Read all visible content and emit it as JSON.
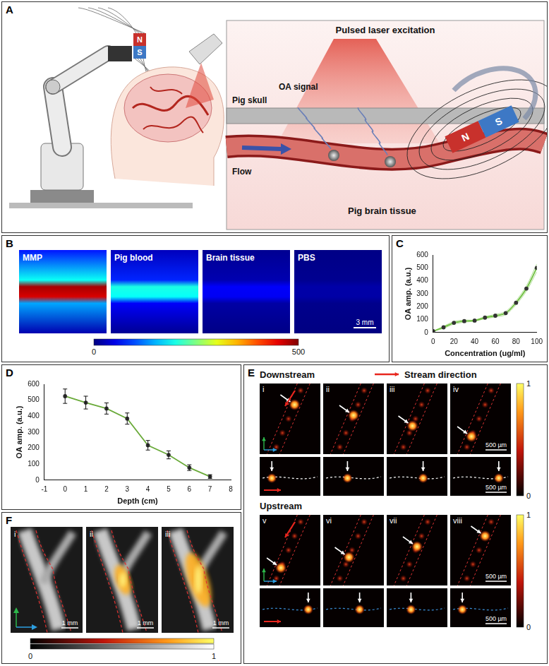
{
  "panels": {
    "A": {
      "label": "A",
      "laser": "Pulsed laser excitation",
      "skull": "Pig skull",
      "signal": "OA signal",
      "flow": "Flow",
      "tissue": "Pig brain tissue",
      "north": "N",
      "south": "S"
    },
    "B": {
      "label": "B",
      "images": [
        "MMP",
        "Pig blood",
        "Brain tissue",
        "PBS"
      ],
      "peak_values": [
        480,
        200,
        60,
        20
      ],
      "scale_bar": "3 mm",
      "colorbar": {
        "range": [
          0,
          500
        ],
        "ticks": [
          0,
          500
        ]
      }
    },
    "C": {
      "label": "C"
    },
    "D": {
      "label": "D"
    },
    "E": {
      "label": "E",
      "downstream": "Downstream",
      "upstream": "Upstream",
      "stream": "Stream direction",
      "subpanels": [
        "i",
        "ii",
        "iii",
        "iv",
        "v",
        "vi",
        "vii",
        "viii"
      ],
      "scale_bar": "500 µm",
      "colorbar": {
        "range": [
          0,
          1
        ],
        "ticks": [
          0,
          1
        ]
      }
    },
    "F": {
      "label": "F",
      "subpanels": [
        "i",
        "ii",
        "iii"
      ],
      "scale_bar": "1 mm",
      "colorbar": {
        "range": [
          0,
          1
        ],
        "ticks": [
          0,
          1
        ]
      }
    }
  },
  "chart_data": [
    {
      "type": "line",
      "x": [
        0,
        10,
        20,
        30,
        40,
        50,
        60,
        70,
        80,
        90,
        100
      ],
      "values": [
        10,
        40,
        75,
        88,
        92,
        115,
        130,
        150,
        230,
        340,
        500
      ],
      "error": [
        0,
        8,
        10,
        8,
        5,
        8,
        10,
        12,
        15,
        20,
        30
      ],
      "color": "#6cbf3c",
      "marker": "circle",
      "xlabel": "Concentration (ug/ml)",
      "ylabel": "OA amp. (a.u.)",
      "xlim": [
        0,
        100
      ],
      "xticks": [
        0,
        20,
        40,
        60,
        80,
        100
      ],
      "ylim": [
        0,
        600
      ],
      "yticks": [
        0,
        100,
        200,
        300,
        400,
        500,
        600
      ],
      "grid": false
    },
    {
      "type": "line",
      "x": [
        0,
        1,
        2,
        3,
        4,
        5,
        6,
        7
      ],
      "values": [
        525,
        485,
        448,
        385,
        218,
        158,
        78,
        22
      ],
      "error": [
        45,
        40,
        35,
        35,
        30,
        25,
        18,
        12
      ],
      "color": "#6aaa3a",
      "marker": "circle",
      "xlabel": "Depth (cm)",
      "ylabel": "OA amp. (a.u.)",
      "xlim": [
        -1,
        8
      ],
      "xticks": [
        -1,
        0,
        1,
        2,
        3,
        4,
        5,
        6,
        7,
        8
      ],
      "ylim": [
        0,
        600
      ],
      "yticks": [
        0,
        100,
        200,
        300,
        400,
        500,
        600
      ],
      "grid": false
    }
  ]
}
